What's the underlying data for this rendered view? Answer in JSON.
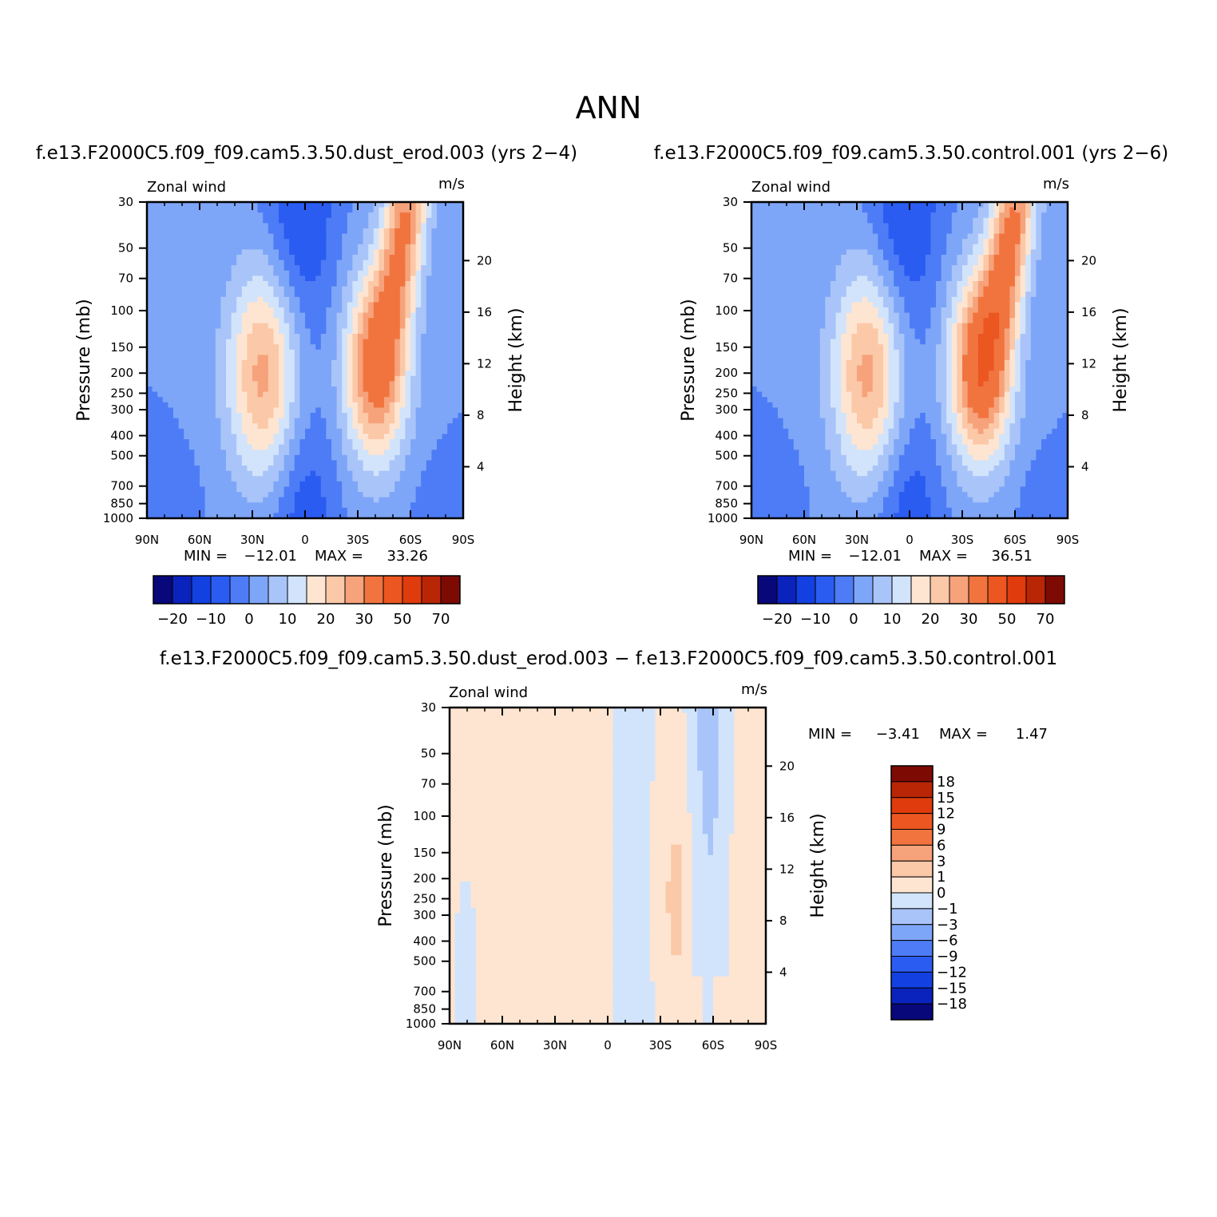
{
  "title": "ANN",
  "colors": {
    "scale_top": [
      "#08087a",
      "#0a23bd",
      "#1340e0",
      "#2b5cf2",
      "#4d7cf6",
      "#7ea6f8",
      "#a9c4f9",
      "#d2e4fb",
      "#fde5d2",
      "#fbc8a8",
      "#f6a27a",
      "#f1743f",
      "#eb5621",
      "#e03b0c",
      "#b92606",
      "#7e0a04"
    ],
    "scale_diff": [
      "#08087a",
      "#0a23bd",
      "#1340e0",
      "#2b5cf2",
      "#4d7cf6",
      "#7ea6f8",
      "#a9c4f9",
      "#d2e4fb",
      "#fde5d2",
      "#fbc8a8",
      "#f6a27a",
      "#f1743f",
      "#eb5621",
      "#e03b0c",
      "#b92606",
      "#7e0a04"
    ]
  },
  "chart_data": [
    {
      "type": "heatmap",
      "title": "f.e13.F2000C5.f09_f09.cam5.3.50.dust_erod.003 (yrs 2−4)",
      "variable": "Zonal wind",
      "units": "m/s",
      "xlabel": "",
      "ylabel": "Pressure (mb)",
      "y2label": "Height (km)",
      "x_ticks": [
        "90N",
        "60N",
        "30N",
        "0",
        "30S",
        "60S",
        "90S"
      ],
      "y_ticks": [
        "30",
        "50",
        "70",
        "100",
        "150",
        "200",
        "250",
        "300",
        "400",
        "500",
        "700",
        "850",
        "1000"
      ],
      "y2_ticks": [
        "20",
        "16",
        "12",
        "8",
        "4"
      ],
      "ylim": [
        1000,
        30
      ],
      "log_y": true,
      "min": -12.01,
      "max": 33.26,
      "min_label": "MIN =",
      "min_value": "−12.01",
      "max_label": "MAX =",
      "max_value": "33.26",
      "colorbar": {
        "orientation": "horizontal",
        "labels": [
          "−20",
          "−10",
          "0",
          "10",
          "20",
          "30",
          "50",
          "70"
        ]
      },
      "jets": [
        {
          "lat": -23,
          "p_mb": 200,
          "peak": 28
        },
        {
          "lat": 40,
          "p_mb": 190,
          "peak": 33
        },
        {
          "lat": 58,
          "p_mb": 40,
          "peak": 30
        }
      ]
    },
    {
      "type": "heatmap",
      "title": "f.e13.F2000C5.f09_f09.cam5.3.50.control.001 (yrs 2−6)",
      "variable": "Zonal wind",
      "units": "m/s",
      "xlabel": "",
      "ylabel": "Pressure (mb)",
      "y2label": "Height (km)",
      "x_ticks": [
        "90N",
        "60N",
        "30N",
        "0",
        "30S",
        "60S",
        "90S"
      ],
      "y_ticks": [
        "30",
        "50",
        "70",
        "100",
        "150",
        "200",
        "250",
        "300",
        "400",
        "500",
        "700",
        "850",
        "1000"
      ],
      "y2_ticks": [
        "20",
        "16",
        "12",
        "8",
        "4"
      ],
      "ylim": [
        1000,
        30
      ],
      "log_y": true,
      "min": -12.01,
      "max": 36.51,
      "min_label": "MIN =",
      "min_value": "−12.01",
      "max_label": "MAX =",
      "max_value": "36.51",
      "colorbar": {
        "orientation": "horizontal",
        "labels": [
          "−20",
          "−10",
          "0",
          "10",
          "20",
          "30",
          "50",
          "70"
        ]
      },
      "jets": [
        {
          "lat": -23,
          "p_mb": 200,
          "peak": 28
        },
        {
          "lat": 40,
          "p_mb": 190,
          "peak": 36
        },
        {
          "lat": 60,
          "p_mb": 45,
          "peak": 32
        }
      ]
    },
    {
      "type": "heatmap",
      "title": "f.e13.F2000C5.f09_f09.cam5.3.50.dust_erod.003 − f.e13.F2000C5.f09_f09.cam5.3.50.control.001",
      "variable": "Zonal wind",
      "units": "m/s",
      "xlabel": "",
      "ylabel": "Pressure (mb)",
      "y2label": "Height (km)",
      "x_ticks": [
        "90N",
        "60N",
        "30N",
        "0",
        "30S",
        "60S",
        "90S"
      ],
      "y_ticks": [
        "30",
        "50",
        "70",
        "100",
        "150",
        "200",
        "250",
        "300",
        "400",
        "500",
        "700",
        "850",
        "1000"
      ],
      "y2_ticks": [
        "20",
        "16",
        "12",
        "8",
        "4"
      ],
      "ylim": [
        1000,
        30
      ],
      "log_y": true,
      "min": -3.41,
      "max": 1.47,
      "min_label": "MIN =",
      "min_value": "−3.41",
      "max_label": "MAX =",
      "max_value": "1.47",
      "colorbar": {
        "orientation": "vertical",
        "labels": [
          "18",
          "15",
          "12",
          "9",
          "6",
          "3",
          "1",
          "0",
          "−1",
          "−3",
          "−6",
          "−9",
          "−12",
          "−15",
          "−18"
        ]
      }
    }
  ]
}
